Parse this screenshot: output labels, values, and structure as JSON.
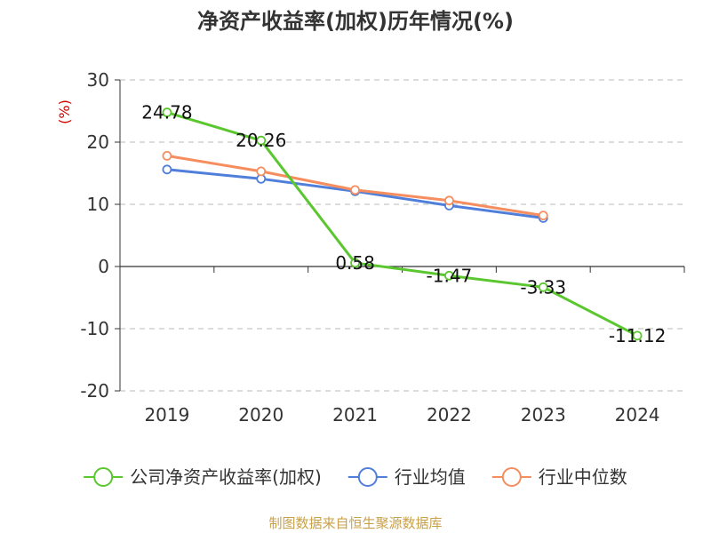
{
  "chart_data": {
    "type": "line",
    "title": "净资产收益率(加权)历年情况(%)",
    "y_unit_label": "(%)",
    "categories": [
      "2019",
      "2020",
      "2021",
      "2022",
      "2023",
      "2024"
    ],
    "ylim": [
      -20,
      30
    ],
    "yticks": [
      30,
      20,
      10,
      0,
      -10,
      -20
    ],
    "grid": true,
    "legend_position": "bottom",
    "series": [
      {
        "name": "公司净资产收益率(加权)",
        "color": "#5ac72f",
        "values": [
          24.78,
          20.26,
          0.58,
          -1.47,
          -3.33,
          -11.12
        ],
        "labels": [
          "24.78",
          "20.26",
          "0.58",
          "-1.47",
          "-3.33",
          "-11.12"
        ]
      },
      {
        "name": "行业均值",
        "color": "#4f7fdb",
        "values": [
          15.6,
          14.1,
          12.1,
          9.8,
          7.8,
          null
        ]
      },
      {
        "name": "行业中位数",
        "color": "#f58d5e",
        "values": [
          17.8,
          15.3,
          12.3,
          10.6,
          8.2,
          null
        ]
      }
    ],
    "source": "制图数据来自恒生聚源数据库"
  }
}
